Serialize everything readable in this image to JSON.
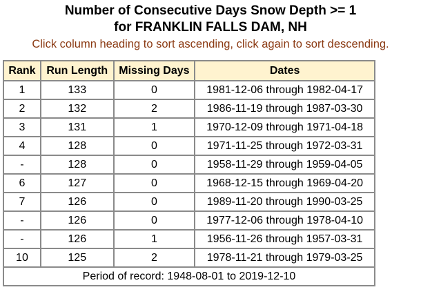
{
  "title_line1": "Number of Consecutive Days Snow Depth >= 1",
  "title_line2": "for FRANKLIN FALLS DAM, NH",
  "hint": "Click column heading to sort ascending, click again to sort descending.",
  "table": {
    "headers": [
      "Rank",
      "Run Length",
      "Missing Days",
      "Dates"
    ],
    "rows": [
      {
        "rank": "1",
        "run": "133",
        "missing": "0",
        "dates": "1981-12-06 through 1982-04-17"
      },
      {
        "rank": "2",
        "run": "132",
        "missing": "2",
        "dates": "1986-11-19 through 1987-03-30"
      },
      {
        "rank": "3",
        "run": "131",
        "missing": "1",
        "dates": "1970-12-09 through 1971-04-18"
      },
      {
        "rank": "4",
        "run": "128",
        "missing": "0",
        "dates": "1971-11-25 through 1972-03-31"
      },
      {
        "rank": "-",
        "run": "128",
        "missing": "0",
        "dates": "1958-11-29 through 1959-04-05"
      },
      {
        "rank": "6",
        "run": "127",
        "missing": "0",
        "dates": "1968-12-15 through 1969-04-20"
      },
      {
        "rank": "7",
        "run": "126",
        "missing": "0",
        "dates": "1989-11-20 through 1990-03-25"
      },
      {
        "rank": "-",
        "run": "126",
        "missing": "0",
        "dates": "1977-12-06 through 1978-04-10"
      },
      {
        "rank": "-",
        "run": "126",
        "missing": "1",
        "dates": "1956-11-26 through 1957-03-31"
      },
      {
        "rank": "10",
        "run": "125",
        "missing": "2",
        "dates": "1978-11-21 through 1979-03-25"
      }
    ],
    "footer": "Period of record: 1948-08-01 to 2019-12-10"
  }
}
